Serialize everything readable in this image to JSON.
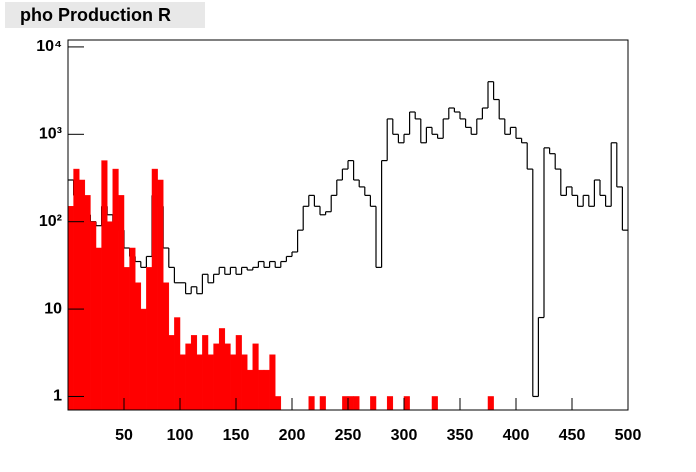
{
  "chart_data": {
    "type": "histogram",
    "title": "pho Production R",
    "log_y": true,
    "bins": [
      0,
      5,
      10,
      15,
      20,
      25,
      30,
      35,
      40,
      45,
      50,
      55,
      60,
      65,
      70,
      75,
      80,
      85,
      90,
      95,
      100,
      105,
      110,
      115,
      120,
      125,
      130,
      135,
      140,
      145,
      150,
      155,
      160,
      165,
      170,
      175,
      180,
      185,
      190,
      195,
      200,
      205,
      210,
      215,
      220,
      225,
      230,
      235,
      240,
      245,
      250,
      255,
      260,
      265,
      270,
      275,
      280,
      285,
      290,
      295,
      300,
      305,
      310,
      315,
      320,
      325,
      330,
      335,
      340,
      345,
      350,
      355,
      360,
      365,
      370,
      375,
      380,
      385,
      390,
      395,
      400,
      405,
      410,
      415,
      420,
      425,
      430,
      435,
      440,
      445,
      450,
      455,
      460,
      465,
      470,
      475,
      480,
      485,
      490,
      495,
      500
    ],
    "series": [
      {
        "color": "#000000",
        "style": "step",
        "values": [
          300,
          200,
          150,
          120,
          100,
          90,
          150,
          120,
          100,
          80,
          50,
          40,
          35,
          30,
          40,
          200,
          150,
          50,
          30,
          20,
          20,
          15,
          18,
          15,
          25,
          20,
          25,
          30,
          25,
          30,
          25,
          30,
          28,
          30,
          35,
          30,
          35,
          30,
          35,
          40,
          45,
          80,
          150,
          200,
          150,
          120,
          130,
          200,
          300,
          400,
          500,
          300,
          250,
          200,
          150,
          30,
          500,
          1500,
          1000,
          800,
          1000,
          1800,
          1500,
          800,
          1200,
          1000,
          900,
          1500,
          2000,
          1800,
          1500,
          1200,
          1000,
          1500,
          2000,
          4000,
          2500,
          1500,
          1000,
          1200,
          900,
          800,
          400,
          1,
          8,
          700,
          600,
          400,
          200,
          250,
          200,
          150,
          200,
          150,
          300,
          200,
          150,
          800,
          250,
          80
        ]
      },
      {
        "color": "#ff0000",
        "style": "filled",
        "values": [
          150,
          400,
          300,
          200,
          100,
          50,
          500,
          100,
          400,
          200,
          30,
          50,
          20,
          10,
          30,
          400,
          300,
          20,
          5,
          8,
          3,
          4,
          5,
          3,
          5,
          3,
          4,
          6,
          4,
          3,
          5,
          3,
          2,
          4,
          2,
          2,
          3,
          1,
          0,
          0,
          0,
          0,
          0,
          1,
          0,
          1,
          0,
          0,
          0,
          1,
          1,
          1,
          0,
          0,
          1,
          0,
          0,
          1,
          0,
          0,
          1,
          0,
          0,
          0,
          0,
          1,
          0,
          0,
          0,
          0,
          0,
          0,
          0,
          0,
          0,
          1,
          0,
          0,
          0,
          0,
          0,
          0,
          0,
          0,
          0,
          0,
          0,
          0,
          0,
          0,
          0,
          0,
          0,
          0,
          0,
          0,
          0,
          0,
          0,
          0
        ]
      }
    ],
    "xlim": [
      0,
      500
    ],
    "xticks": [
      50,
      100,
      150,
      200,
      250,
      300,
      350,
      400,
      450,
      500
    ],
    "ylim": [
      0.7,
      12000
    ],
    "yticks": [
      1,
      10,
      {
        "value": 100,
        "label": "10²"
      },
      {
        "value": 1000,
        "label": "10³"
      },
      {
        "value": 10000,
        "label": "10⁴"
      }
    ]
  }
}
